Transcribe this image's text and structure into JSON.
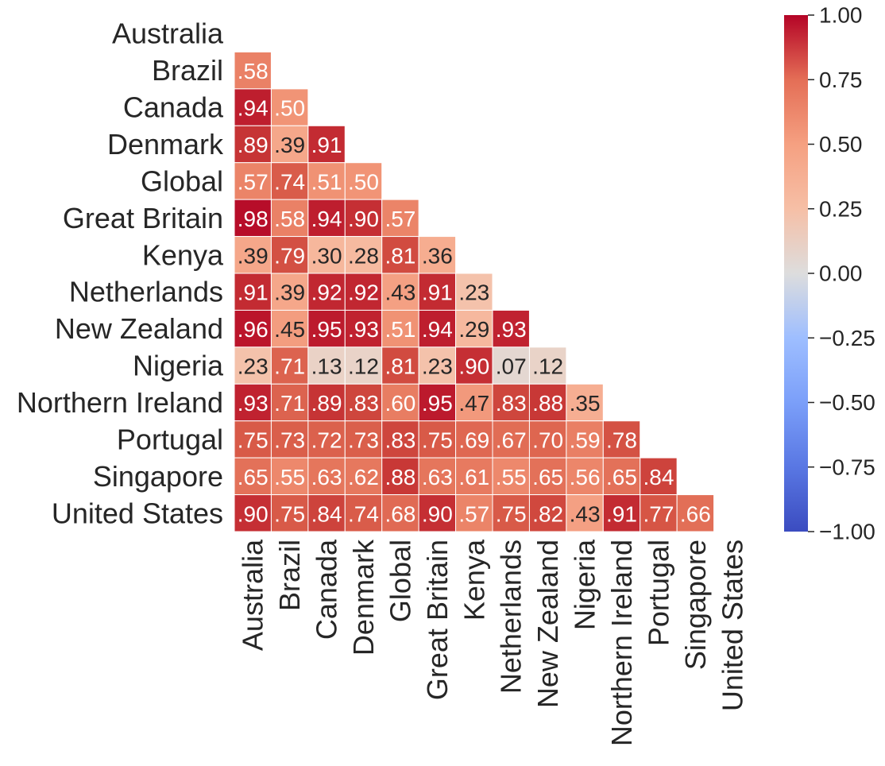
{
  "chart_data": {
    "type": "heatmap",
    "title": "",
    "xlabel": "",
    "ylabel": "",
    "labels": [
      "Australia",
      "Brazil",
      "Canada",
      "Denmark",
      "Global",
      "Great Britain",
      "Kenya",
      "Netherlands",
      "New Zealand",
      "Nigeria",
      "Northern Ireland",
      "Portugal",
      "Singapore",
      "United States"
    ],
    "value_format": "leading-zero-stripped, 2 decimals",
    "mask": "upper triangle including diagonal",
    "lower_triangle": [
      [],
      [
        0.58
      ],
      [
        0.94,
        0.5
      ],
      [
        0.89,
        0.39,
        0.91
      ],
      [
        0.57,
        0.74,
        0.51,
        0.5
      ],
      [
        0.98,
        0.58,
        0.94,
        0.9,
        0.57
      ],
      [
        0.39,
        0.79,
        0.3,
        0.28,
        0.81,
        0.36
      ],
      [
        0.91,
        0.39,
        0.92,
        0.92,
        0.43,
        0.91,
        0.23
      ],
      [
        0.96,
        0.45,
        0.95,
        0.93,
        0.51,
        0.94,
        0.29,
        0.93
      ],
      [
        0.23,
        0.71,
        0.13,
        0.12,
        0.81,
        0.23,
        0.9,
        0.07,
        0.12
      ],
      [
        0.93,
        0.71,
        0.89,
        0.83,
        0.6,
        0.95,
        0.47,
        0.83,
        0.88,
        0.35
      ],
      [
        0.75,
        0.73,
        0.72,
        0.73,
        0.83,
        0.75,
        0.69,
        0.67,
        0.7,
        0.59,
        0.78
      ],
      [
        0.65,
        0.55,
        0.63,
        0.62,
        0.88,
        0.63,
        0.61,
        0.55,
        0.65,
        0.56,
        0.65,
        0.84
      ],
      [
        0.9,
        0.75,
        0.84,
        0.74,
        0.68,
        0.9,
        0.57,
        0.75,
        0.82,
        0.43,
        0.91,
        0.77,
        0.66
      ]
    ],
    "colormap": "coolwarm",
    "vmin": -1.0,
    "vmax": 1.0,
    "colorbar": {
      "placement": "right",
      "ticks": [
        "1.00",
        "0.75",
        "0.50",
        "0.25",
        "0.00",
        "−0.25",
        "−0.50",
        "−0.75",
        "−1.00"
      ],
      "tick_values": [
        1.0,
        0.75,
        0.5,
        0.25,
        0.0,
        -0.25,
        -0.5,
        -0.75,
        -1.0
      ]
    },
    "colors": {
      "low": "#3b4cc0",
      "mid": "#dddddd",
      "high": "#b40426",
      "text_light": "#ffffff",
      "text_dark": "#262626",
      "grid": "#ffffff"
    }
  }
}
